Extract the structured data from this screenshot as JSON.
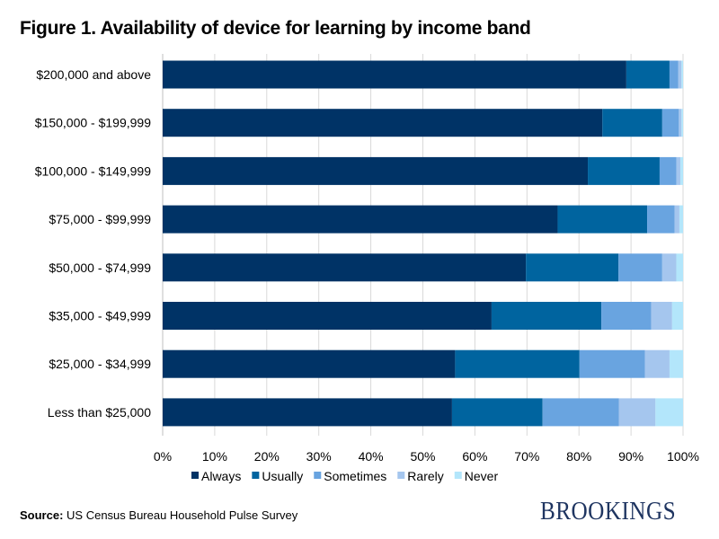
{
  "chart_data": {
    "type": "bar",
    "orientation": "horizontal",
    "stacked": true,
    "title": "Figure 1. Availability of device for learning by income band",
    "categories": [
      "$200,000 and above",
      "$150,000 - $199,999",
      "$100,000 - $149,999",
      "$75,000 - $99,999",
      "$50,000 - $74,999",
      "$35,000 - $49,999",
      "$25,000 - $34,999",
      "Less than $25,000"
    ],
    "series": [
      {
        "name": "Always",
        "color": "#003366",
        "values": [
          89.1,
          84.5,
          81.7,
          75.9,
          69.8,
          63.2,
          56.2,
          55.6
        ]
      },
      {
        "name": "Usually",
        "color": "#00649f",
        "values": [
          8.3,
          11.5,
          13.8,
          17.2,
          17.8,
          21.1,
          23.9,
          17.4
        ]
      },
      {
        "name": "Sometimes",
        "color": "#69a4e0",
        "values": [
          1.7,
          3.2,
          3.2,
          5.3,
          8.4,
          9.6,
          12.6,
          14.7
        ]
      },
      {
        "name": "Rarely",
        "color": "#a5c6ee",
        "values": [
          0.6,
          0.5,
          0.8,
          0.9,
          2.7,
          4.0,
          4.7,
          7.0
        ]
      },
      {
        "name": "Never",
        "color": "#b3e6fb",
        "values": [
          0.3,
          0.3,
          0.5,
          0.7,
          1.3,
          2.1,
          2.6,
          5.3
        ]
      }
    ],
    "xlim": [
      0,
      100
    ],
    "xticks": [
      "0%",
      "10%",
      "20%",
      "30%",
      "40%",
      "50%",
      "60%",
      "70%",
      "80%",
      "90%",
      "100%"
    ],
    "grid": true,
    "legend": "bottom"
  },
  "source": {
    "label": "Source:",
    "text": "US Census Bureau Household Pulse Survey"
  },
  "logo": "BROOKINGS"
}
